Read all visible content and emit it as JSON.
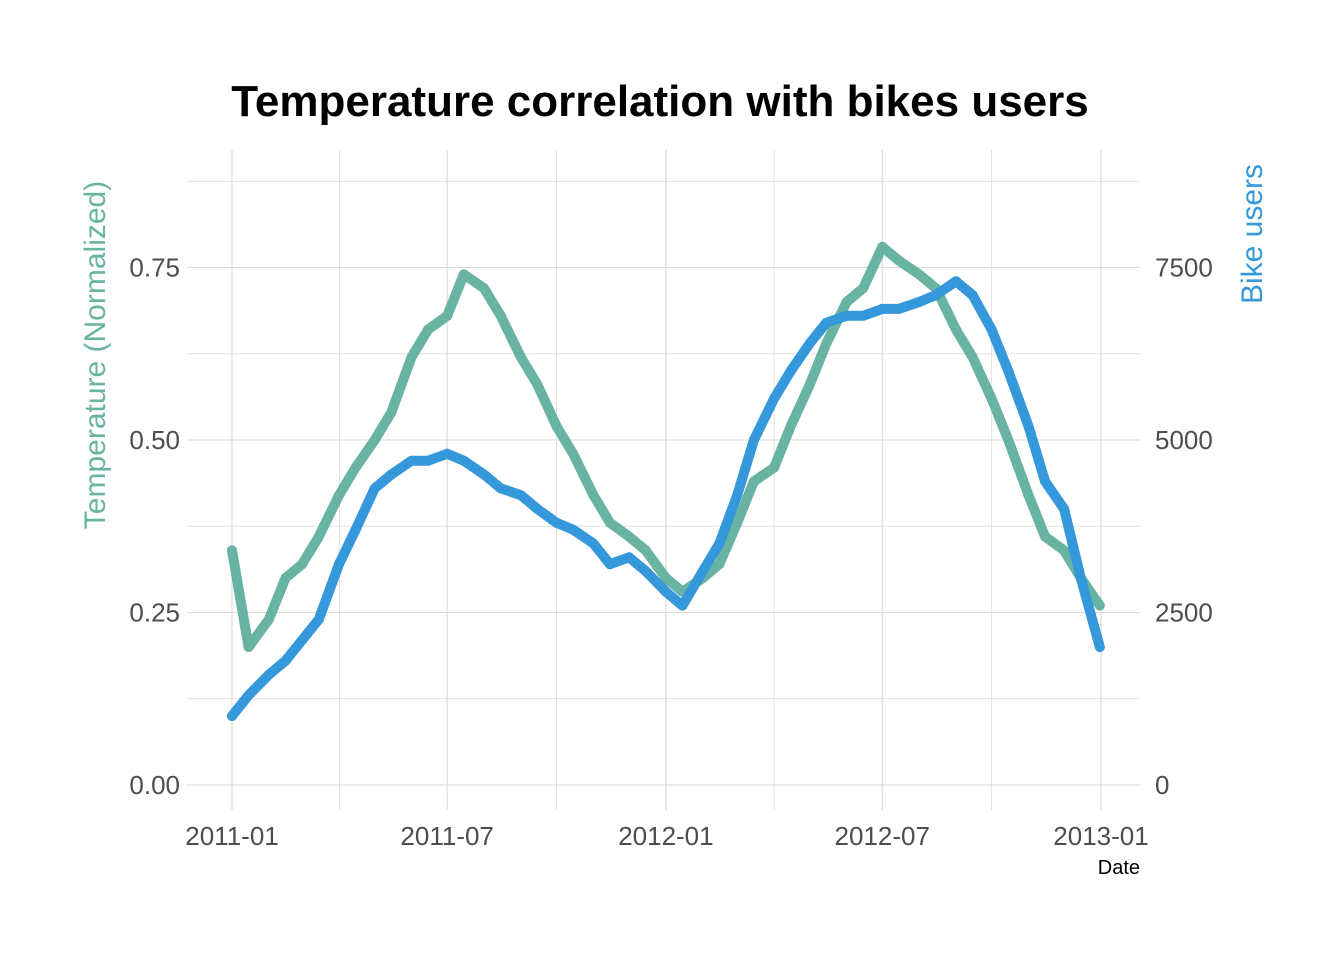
{
  "chart_data": {
    "type": "line",
    "title": "Temperature correlation with bikes users",
    "xlabel": "Date",
    "ylabel_left": "Temperature (Normalized)",
    "ylabel_right": "Bike users",
    "x_ticks": [
      "2011-01",
      "2011-07",
      "2012-01",
      "2012-07",
      "2013-01"
    ],
    "y_left_ticks": [
      "0.00",
      "0.25",
      "0.50",
      "0.75"
    ],
    "y_right_ticks": [
      "0",
      "2500",
      "5000",
      "7500"
    ],
    "ylim_left": [
      0,
      0.9
    ],
    "ylim_right": [
      0,
      9000
    ],
    "grid": true,
    "colors": {
      "temperature": "#69b3a2",
      "bikes": "#3498db",
      "grid": "#d9d9d9"
    },
    "series": [
      {
        "axis": "left",
        "x": [
          "2011-01-01",
          "2011-01-15",
          "2011-02-01",
          "2011-02-15",
          "2011-03-01",
          "2011-03-15",
          "2011-04-01",
          "2011-04-15",
          "2011-05-01",
          "2011-05-15",
          "2011-06-01",
          "2011-06-15",
          "2011-07-01",
          "2011-07-15",
          "2011-08-01",
          "2011-08-15",
          "2011-09-01",
          "2011-09-15",
          "2011-10-01",
          "2011-10-15",
          "2011-11-01",
          "2011-11-15",
          "2011-12-01",
          "2011-12-15",
          "2012-01-01",
          "2012-01-15",
          "2012-02-01",
          "2012-02-15",
          "2012-03-01",
          "2012-03-15",
          "2012-04-01",
          "2012-04-15",
          "2012-05-01",
          "2012-05-15",
          "2012-06-01",
          "2012-06-15",
          "2012-07-01",
          "2012-07-15",
          "2012-08-01",
          "2012-08-15",
          "2012-09-01",
          "2012-09-15",
          "2012-10-01",
          "2012-10-15",
          "2012-11-01",
          "2012-11-15",
          "2012-12-01",
          "2012-12-15",
          "2012-12-31"
        ],
        "values": [
          0.34,
          0.2,
          0.24,
          0.3,
          0.32,
          0.36,
          0.42,
          0.46,
          0.5,
          0.54,
          0.62,
          0.66,
          0.68,
          0.74,
          0.72,
          0.68,
          0.62,
          0.58,
          0.52,
          0.48,
          0.42,
          0.38,
          0.36,
          0.34,
          0.3,
          0.28,
          0.3,
          0.32,
          0.38,
          0.44,
          0.46,
          0.52,
          0.58,
          0.64,
          0.7,
          0.72,
          0.78,
          0.76,
          0.74,
          0.72,
          0.66,
          0.62,
          0.56,
          0.5,
          0.42,
          0.36,
          0.34,
          0.3,
          0.26
        ]
      },
      {
        "axis": "right",
        "x": [
          "2011-01-01",
          "2011-01-15",
          "2011-02-01",
          "2011-02-15",
          "2011-03-01",
          "2011-03-15",
          "2011-04-01",
          "2011-04-15",
          "2011-05-01",
          "2011-05-15",
          "2011-06-01",
          "2011-06-15",
          "2011-07-01",
          "2011-07-15",
          "2011-08-01",
          "2011-08-15",
          "2011-09-01",
          "2011-09-15",
          "2011-10-01",
          "2011-10-15",
          "2011-11-01",
          "2011-11-15",
          "2011-12-01",
          "2011-12-15",
          "2012-01-01",
          "2012-01-15",
          "2012-02-01",
          "2012-02-15",
          "2012-03-01",
          "2012-03-15",
          "2012-04-01",
          "2012-04-15",
          "2012-05-01",
          "2012-05-15",
          "2012-06-01",
          "2012-06-15",
          "2012-07-01",
          "2012-07-15",
          "2012-08-01",
          "2012-08-15",
          "2012-09-01",
          "2012-09-15",
          "2012-10-01",
          "2012-10-15",
          "2012-11-01",
          "2012-11-15",
          "2012-12-01",
          "2012-12-15",
          "2012-12-31"
        ],
        "values": [
          1000,
          1300,
          1600,
          1800,
          2100,
          2400,
          3200,
          3700,
          4300,
          4500,
          4700,
          4700,
          4800,
          4700,
          4500,
          4300,
          4200,
          4000,
          3800,
          3700,
          3500,
          3200,
          3300,
          3100,
          2800,
          2600,
          3100,
          3500,
          4200,
          5000,
          5600,
          6000,
          6400,
          6700,
          6800,
          6800,
          6900,
          6900,
          7000,
          7100,
          7300,
          7100,
          6600,
          6000,
          5200,
          4400,
          4000,
          3000,
          2000
        ]
      }
    ]
  }
}
